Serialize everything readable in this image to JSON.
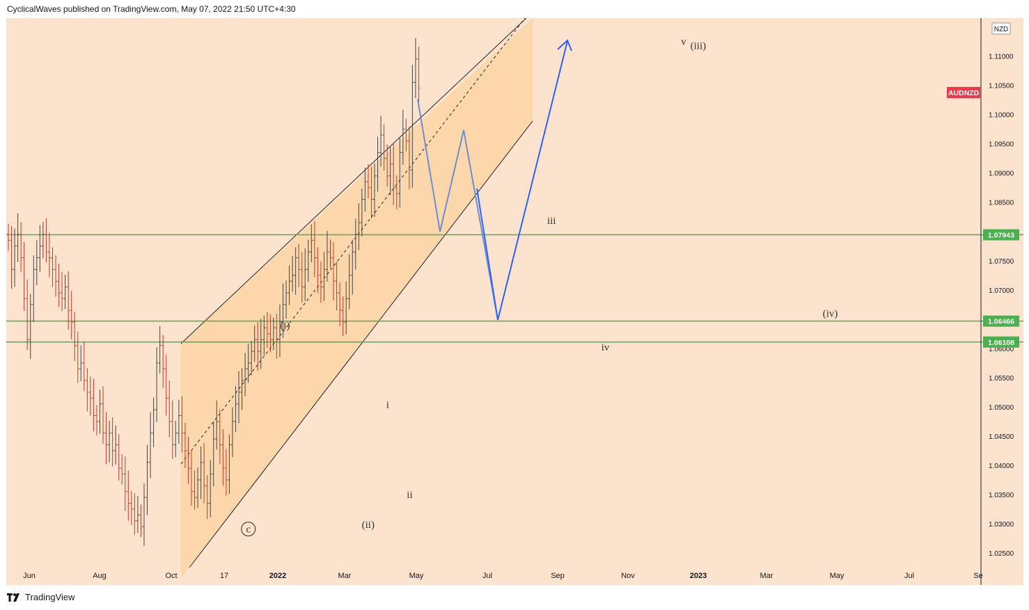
{
  "header": {
    "publisher_line": "CyclicalWaves published on TradingView.com, May 07, 2022 21:50 UTC+4:30"
  },
  "footer": {
    "brand": "TradingView"
  },
  "chart_data": {
    "type": "candlestick",
    "symbol_tag": "AUDNZD",
    "currency_badge": "NZD",
    "price_axis": {
      "ticks": [
        "1.11000",
        "1.10500",
        "1.10000",
        "1.09500",
        "1.09000",
        "1.08500",
        "1.07500",
        "1.07000",
        "1.06000",
        "1.05500",
        "1.05000",
        "1.04500",
        "1.04000",
        "1.03500",
        "1.03000",
        "1.02500"
      ],
      "ylim": [
        1.0225,
        1.1165
      ]
    },
    "time_axis": {
      "ticks": [
        "Jun",
        "Aug",
        "Oct",
        "17",
        "2022",
        "Mar",
        "May",
        "Jul",
        "Sep",
        "Nov",
        "2023",
        "Mar",
        "May",
        "Jul",
        "Se"
      ]
    },
    "price_levels": [
      {
        "value": 1.07943,
        "label": "1.07943"
      },
      {
        "value": 1.06466,
        "label": "1.06466"
      },
      {
        "value": 1.06108,
        "label": "1.06108"
      }
    ],
    "wave_labels": [
      {
        "text": "(i)",
        "t": 22.8,
        "price": 1.0634
      },
      {
        "text": "(ii)",
        "t": 29.6,
        "price": 1.0293
      },
      {
        "text": "(iii)",
        "t": 56.6,
        "price": 1.1112
      },
      {
        "text": "(iv)",
        "t": 67.4,
        "price": 1.0654
      },
      {
        "text": "i",
        "t": 31.2,
        "price": 1.0498
      },
      {
        "text": "ii",
        "t": 33.0,
        "price": 1.0344
      },
      {
        "text": "iii",
        "t": 44.6,
        "price": 1.0813
      },
      {
        "text": "iv",
        "t": 49.0,
        "price": 1.0596
      },
      {
        "text": "v",
        "t": 55.4,
        "price": 1.1119
      },
      {
        "text": "c",
        "t": 19.8,
        "price": 1.0285
      }
    ],
    "ohlc_close": [
      1.0785,
      1.0735,
      1.0775,
      1.0795,
      1.0755,
      1.0685,
      1.0615,
      1.0675,
      1.0735,
      1.0755,
      1.0775,
      1.0795,
      1.0765,
      1.0755,
      1.0735,
      1.0715,
      1.0695,
      1.0685,
      1.0705,
      1.0665,
      1.0645,
      1.0605,
      1.0565,
      1.0575,
      1.0545,
      1.0525,
      1.0515,
      1.0485,
      1.0475,
      1.0505,
      1.0455,
      1.0435,
      1.0455,
      1.0425,
      1.0435,
      1.0395,
      1.0385,
      1.0355,
      1.0335,
      1.0325,
      1.0305,
      1.0315,
      1.0295,
      1.0345,
      1.0405,
      1.0455,
      1.0495,
      1.0575,
      1.0605,
      1.0565,
      1.0515,
      1.0475,
      1.0435,
      1.0455,
      1.0485,
      1.0455,
      1.0425,
      1.0395,
      1.0355,
      1.0345,
      1.0375,
      1.0405,
      1.0365,
      1.0335,
      1.0385,
      1.0445,
      1.0475,
      1.0435,
      1.0395,
      1.0375,
      1.0435,
      1.0475,
      1.0505,
      1.0525,
      1.0545,
      1.0565,
      1.0575,
      1.0595,
      1.0615,
      1.0595,
      1.0615,
      1.0635,
      1.0625,
      1.0615,
      1.0635,
      1.0615,
      1.0645,
      1.0675,
      1.0695,
      1.0715,
      1.0725,
      1.0755,
      1.0735,
      1.0705,
      1.0735,
      1.0765,
      1.0785,
      1.0755,
      1.0725,
      1.0705,
      1.0735,
      1.0765,
      1.0755,
      1.0715,
      1.0695,
      1.0665,
      1.0645,
      1.0685,
      1.0725,
      1.0765,
      1.0795,
      1.0815,
      1.0855,
      1.0885,
      1.0875,
      1.0855,
      1.0895,
      1.0935,
      1.0965,
      1.0925,
      1.0895,
      1.0915,
      1.0875,
      1.0865,
      1.0935,
      1.0975,
      1.0955,
      1.0905,
      1.1055,
      1.1095,
      1.1045
    ]
  },
  "colors": {
    "chart_bg": "#fce3cd",
    "channel_fill": "#fcd5a8",
    "level_line": "#4caf50",
    "level_label_bg": "#4caf50",
    "symbol_tag_bg": "#f23645",
    "projection_grey": "#6f8ccf",
    "projection_blue": "#2962ff",
    "candle_up": "#444444",
    "candle_down": "#c0392b"
  },
  "icons": {
    "logo": "tradingview-logo-icon",
    "wave_circle": "circled-c-marker"
  }
}
